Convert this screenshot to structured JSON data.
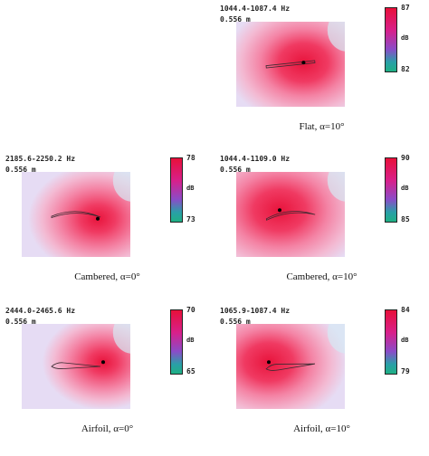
{
  "chart_data": [
    {
      "type": "heatmap",
      "caption": "Flat, α=10°",
      "freq_line1": "1044.4-1087.4 Hz",
      "freq_line2": "0.556 m",
      "cmax": "87",
      "cmin": "82",
      "unit": "dB",
      "peak": {
        "x": 0.62,
        "y": 0.48
      },
      "profile": "flat",
      "angle_deg": 10,
      "hotness": 0.85,
      "spread": {
        "rx": 0.45,
        "ry": 0.4
      }
    },
    {
      "type": "heatmap",
      "caption": "Cambered, α=0°",
      "freq_line1": "2185.6-2250.2 Hz",
      "freq_line2": "0.556 m",
      "cmax": "78",
      "cmin": "73",
      "unit": "dB",
      "peak": {
        "x": 0.7,
        "y": 0.55
      },
      "profile": "cambered",
      "angle_deg": 0,
      "hotness": 0.6,
      "spread": {
        "rx": 0.35,
        "ry": 0.4
      }
    },
    {
      "type": "heatmap",
      "caption": "Cambered, α=10°",
      "freq_line1": "1044.4-1109.0 Hz",
      "freq_line2": "0.556 m",
      "cmax": "90",
      "cmin": "85",
      "unit": "dB",
      "peak": {
        "x": 0.4,
        "y": 0.45
      },
      "profile": "cambered",
      "angle_deg": 10,
      "hotness": 0.8,
      "spread": {
        "rx": 0.5,
        "ry": 0.45
      }
    },
    {
      "type": "heatmap",
      "caption": "Airfoil, α=0°",
      "freq_line1": "2444.0-2465.6 Hz",
      "freq_line2": "0.556 m",
      "cmax": "70",
      "cmin": "65",
      "unit": "dB",
      "peak": {
        "x": 0.75,
        "y": 0.45
      },
      "profile": "airfoil",
      "angle_deg": 0,
      "hotness": 0.55,
      "spread": {
        "rx": 0.3,
        "ry": 0.35
      }
    },
    {
      "type": "heatmap",
      "caption": "Airfoil, α=10°",
      "freq_line1": "1065.9-1087.4 Hz",
      "freq_line2": "0.556 m",
      "cmax": "84",
      "cmin": "79",
      "unit": "dB",
      "peak": {
        "x": 0.3,
        "y": 0.45
      },
      "profile": "airfoil",
      "angle_deg": 10,
      "hotness": 0.85,
      "spread": {
        "rx": 0.45,
        "ry": 0.4
      }
    }
  ]
}
